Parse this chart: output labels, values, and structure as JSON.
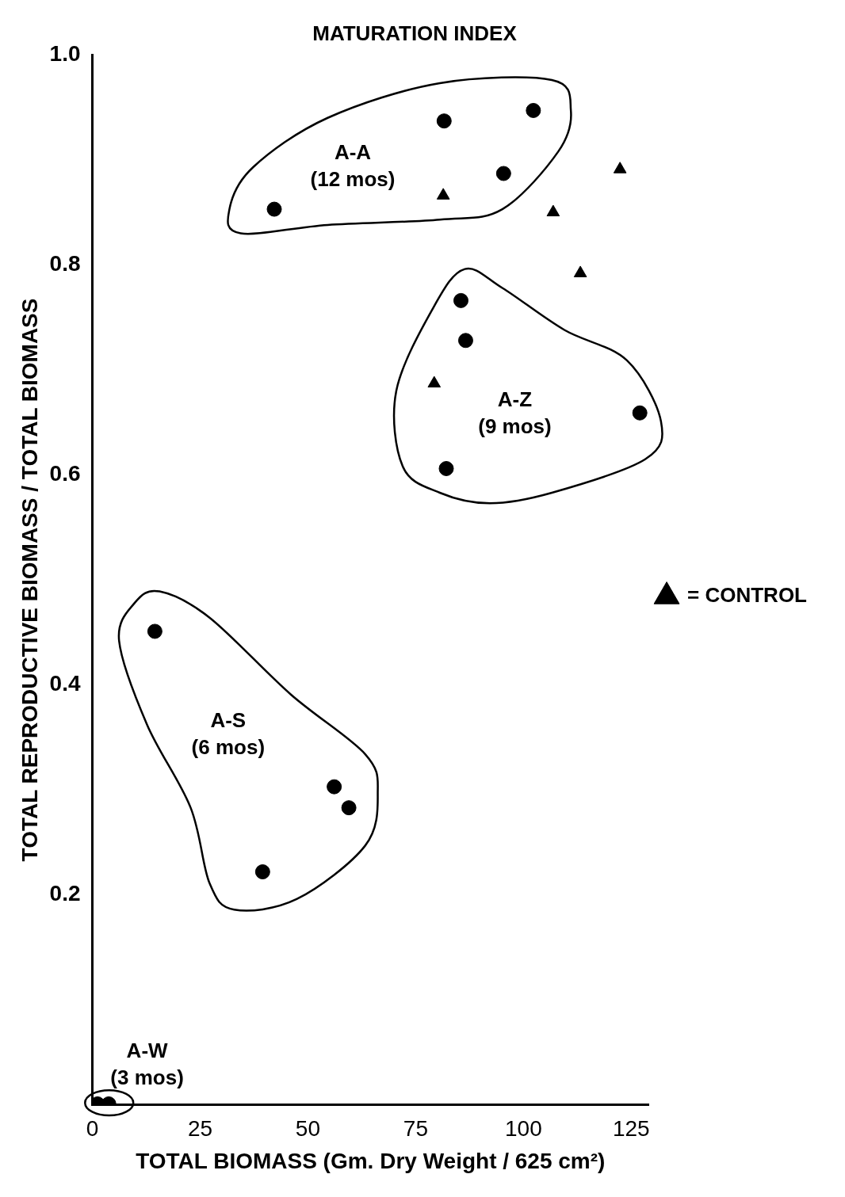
{
  "chart_data": {
    "type": "scatter",
    "title": "MATURATION INDEX",
    "xlabel": "TOTAL BIOMASS (Gm. Dry Weight / 625 cm²)",
    "ylabel": "TOTAL REPRODUCTIVE BIOMASS / TOTAL BIOMASS",
    "xlim": [
      0,
      129
    ],
    "xticks": [
      0,
      25,
      50,
      75,
      100,
      125
    ],
    "ylim": [
      0,
      1
    ],
    "yticks": [
      {
        "value": 0.2,
        "label": "0.2"
      },
      {
        "value": 0.4,
        "label": "0.4"
      },
      {
        "value": 0.6,
        "label": "0.6"
      },
      {
        "value": 0.8,
        "label": "0.8"
      },
      {
        "value": 1,
        "label": "1.0"
      }
    ],
    "grid": false,
    "legend": "right",
    "series": [
      {
        "color": "#000000",
        "marker": "circle",
        "x": [
          42.2,
          81.6,
          102.3,
          95.4,
          85.5,
          86.6,
          82.1,
          127,
          14.5,
          56.1,
          59.5,
          39.5,
          1.2,
          3.8
        ],
        "values": [
          0.853,
          0.937,
          0.947,
          0.887,
          0.766,
          0.728,
          0.606,
          0.659,
          0.451,
          0.303,
          0.283,
          0.222,
          0.001,
          0.001
        ]
      },
      {
        "name": "= CONTROL",
        "color": "#000000",
        "marker": "triangle",
        "x": [
          81.4,
          106.9,
          122.4,
          113.2,
          79.3
        ],
        "values": [
          0.866,
          0.85,
          0.891,
          0.792,
          0.687
        ]
      }
    ],
    "annotations": [
      "A-A\n(12 mos)",
      "A-Z\n(9 mos)",
      "A-S\n(6 mos)",
      "A-W\n(3 mos)"
    ]
  }
}
